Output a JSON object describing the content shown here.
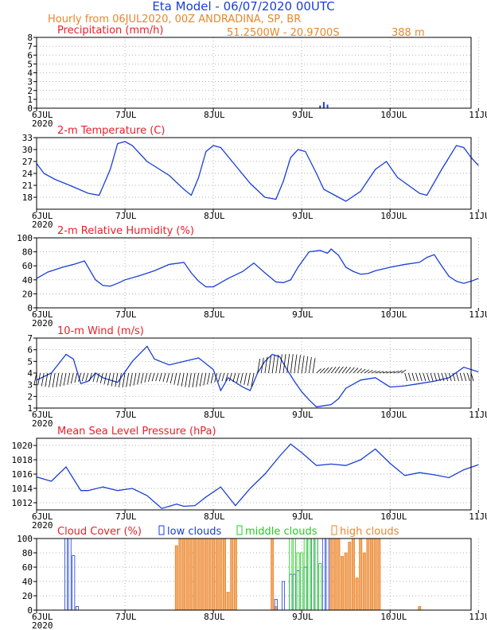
{
  "header": {
    "title": "Eta Model - 06/07/2020 00UTC",
    "subtitle": "Hourly from 06JUL2020, 00Z  ANDRADINA, SP, BR",
    "coords": "51.2500W - 20.9700S",
    "elevation": "388  m"
  },
  "colors": {
    "title": "#1a3fd6",
    "orange": "#e8872a",
    "red": "#e8202a",
    "blue": "#1a3fd6",
    "green": "#22cc22",
    "grid": "#999999"
  },
  "days": [
    "6JUL",
    "7JUL",
    "8JUL",
    "9JUL",
    "10JUL",
    "11JUL"
  ],
  "year": "2020",
  "chart_data": [
    {
      "type": "bar",
      "name": "precipitation",
      "title": "Precipitation (mm/h)",
      "ylim": [
        0,
        8
      ],
      "yticks": [
        "0",
        "1",
        "2",
        "3",
        "4",
        "5",
        "6",
        "7",
        "8"
      ],
      "x_hours": [
        77,
        78,
        79
      ],
      "values": [
        0.3,
        0.7,
        0.4
      ]
    },
    {
      "type": "line",
      "name": "temperature",
      "title": "2-m Temperature (C)",
      "ylim": [
        15,
        33
      ],
      "yticks": [
        "18",
        "21",
        "24",
        "27",
        "30",
        "33"
      ],
      "x_hours": [
        0,
        2,
        5,
        9,
        14,
        17,
        20,
        22,
        24,
        26,
        30,
        36,
        40,
        42,
        44,
        46,
        48,
        50,
        54,
        58,
        62,
        65,
        67,
        69,
        71,
        73,
        76,
        78,
        80,
        82,
        84,
        88,
        92,
        95,
        98,
        101,
        104,
        106,
        110,
        114,
        116,
        118,
        120
      ],
      "y": [
        26.5,
        24,
        22.5,
        21,
        19,
        18.5,
        25,
        31.5,
        32,
        31,
        27,
        23.5,
        20,
        18.5,
        23,
        29.5,
        31,
        30.5,
        26,
        21.5,
        18,
        17.5,
        22,
        28,
        30,
        29.5,
        24,
        20,
        19,
        18,
        17,
        19.5,
        25,
        27,
        23,
        21,
        19,
        18.5,
        25,
        31,
        30.5,
        28,
        26
      ]
    },
    {
      "type": "line",
      "name": "humidity",
      "title": "2-m Relative Humidity (%)",
      "ylim": [
        0,
        100
      ],
      "yticks": [
        "0",
        "20",
        "40",
        "60",
        "80",
        "100"
      ],
      "x_hours": [
        0,
        3,
        7,
        10,
        13,
        16,
        18,
        20,
        22,
        24,
        28,
        32,
        36,
        40,
        42,
        44,
        46,
        48,
        52,
        56,
        59,
        62,
        65,
        67,
        69,
        71,
        74,
        77,
        79,
        80,
        82,
        84,
        86,
        88,
        90,
        92,
        96,
        100,
        104,
        106,
        108,
        110,
        112,
        114,
        116,
        118,
        120
      ],
      "y": [
        42,
        51,
        58,
        62,
        67,
        40,
        32,
        31,
        35,
        40,
        46,
        53,
        62,
        65,
        50,
        38,
        30,
        30,
        42,
        52,
        64,
        50,
        37,
        36,
        40,
        58,
        80,
        82,
        78,
        84,
        75,
        58,
        52,
        48,
        49,
        53,
        58,
        62,
        65,
        72,
        76,
        60,
        45,
        38,
        35,
        38,
        42
      ]
    },
    {
      "type": "line",
      "name": "wind",
      "title": "10-m Wind (m/s)",
      "ylim": [
        1,
        7
      ],
      "yticks": [
        "1",
        "2",
        "3",
        "4",
        "5",
        "6",
        "7"
      ],
      "x_hours": [
        0,
        4,
        8,
        10,
        12,
        14,
        16,
        18,
        22,
        26,
        30,
        32,
        36,
        40,
        44,
        48,
        50,
        52,
        56,
        58,
        60,
        62,
        64,
        66,
        68,
        70,
        72,
        74,
        76,
        78,
        80,
        82,
        84,
        88,
        92,
        96,
        100,
        104,
        108,
        112,
        116,
        120
      ],
      "y": [
        3.4,
        4.0,
        5.6,
        5.2,
        3.1,
        3.3,
        4.0,
        3.6,
        3.2,
        5.0,
        6.3,
        5.2,
        4.7,
        5.0,
        5.3,
        4.3,
        2.5,
        3.6,
        2.8,
        2.5,
        4.0,
        5.0,
        5.6,
        5.4,
        4.3,
        3.3,
        2.4,
        1.7,
        1.1,
        1.2,
        1.3,
        1.8,
        2.7,
        3.4,
        3.6,
        2.8,
        2.9,
        3.1,
        3.3,
        3.6,
        4.5,
        4.1
      ]
    },
    {
      "type": "line",
      "name": "pressure",
      "title": "Mean Sea Level Pressure (hPa)",
      "ylim": [
        1011,
        1021
      ],
      "yticks": [
        "1012",
        "1014",
        "1016",
        "1018",
        "1020"
      ],
      "x_hours": [
        0,
        4,
        8,
        12,
        14,
        18,
        22,
        26,
        30,
        34,
        38,
        40,
        43,
        46,
        50,
        54,
        58,
        62,
        66,
        69,
        72,
        76,
        80,
        84,
        88,
        92,
        96,
        100,
        104,
        108,
        112,
        116,
        120
      ],
      "y": [
        1015.6,
        1015,
        1017,
        1013.7,
        1013.7,
        1014.2,
        1013.7,
        1014,
        1013,
        1011.2,
        1011.8,
        1011.5,
        1011.6,
        1012.8,
        1014.2,
        1011.6,
        1014,
        1016,
        1018.5,
        1020.2,
        1019,
        1017.2,
        1017.4,
        1017.2,
        1018,
        1019.5,
        1017.5,
        1015.8,
        1016.2,
        1015.9,
        1015.5,
        1016.6,
        1017.3
      ]
    },
    {
      "type": "bar",
      "name": "cloud",
      "title": "Cloud Cover (%)",
      "ylim": [
        0,
        100
      ],
      "yticks": [
        "0",
        "20",
        "40",
        "60",
        "80",
        "100"
      ],
      "legend": [
        "low clouds",
        "middle clouds",
        "high clouds"
      ],
      "low": {
        "x_hours": [
          8,
          9,
          10,
          11,
          65,
          67,
          69,
          70,
          71,
          73,
          74,
          75,
          76,
          78,
          79
        ],
        "values": [
          100,
          100,
          76,
          5,
          15,
          40,
          50,
          50,
          55,
          60,
          100,
          100,
          100,
          100,
          100
        ]
      },
      "middle": {
        "x_hours": [
          69,
          70,
          71,
          72,
          73,
          74,
          75,
          76,
          77
        ],
        "values": [
          100,
          100,
          80,
          80,
          100,
          100,
          100,
          100,
          65
        ]
      },
      "high": {
        "x_hours": [
          38,
          39,
          40,
          41,
          42,
          43,
          44,
          45,
          46,
          47,
          48,
          49,
          50,
          51,
          52,
          53,
          54,
          64,
          65,
          80,
          81,
          82,
          83,
          84,
          85,
          86,
          87,
          88,
          89,
          90,
          91,
          92,
          93,
          104
        ],
        "values": [
          90,
          100,
          100,
          100,
          100,
          100,
          100,
          100,
          100,
          100,
          100,
          100,
          100,
          100,
          25,
          100,
          100,
          100,
          5,
          100,
          100,
          100,
          75,
          80,
          95,
          100,
          45,
          100,
          80,
          100,
          100,
          100,
          100,
          5
        ]
      }
    }
  ]
}
